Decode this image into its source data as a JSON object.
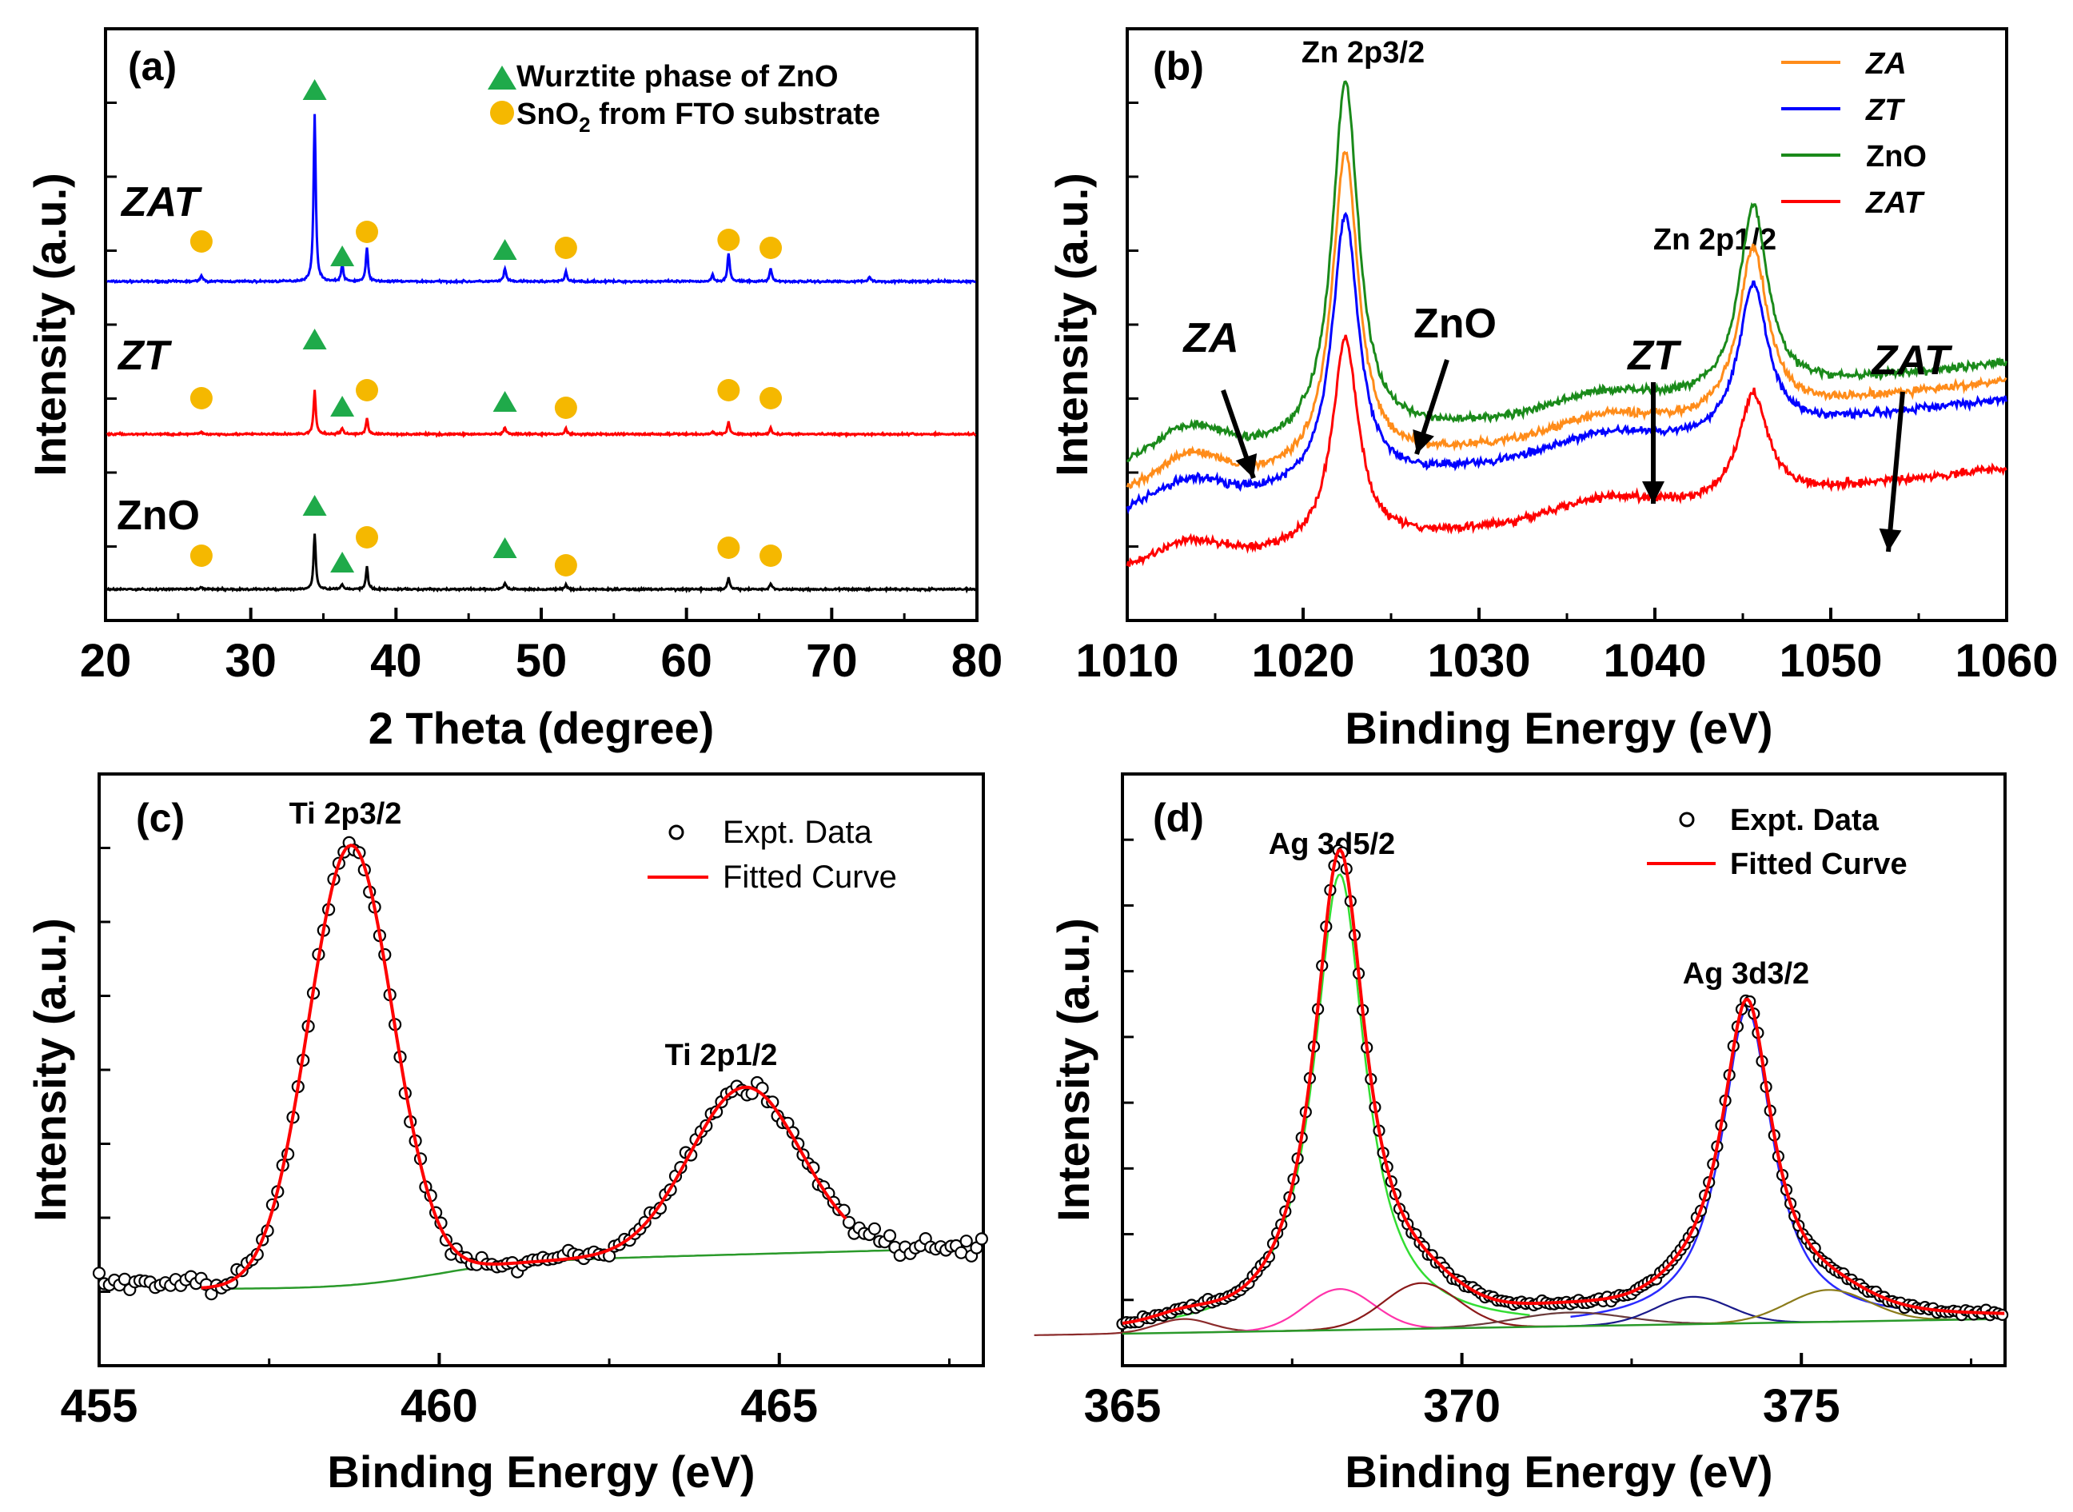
{
  "chart_data": [
    {
      "id": "a",
      "type": "line",
      "panel_label": "(a)",
      "xlabel": "2 Theta (degree)",
      "ylabel": "Intensity (a.u.)",
      "xlim": [
        20,
        80
      ],
      "xticks": [
        "20",
        "30",
        "40",
        "50",
        "60",
        "70",
        "80"
      ],
      "legend": {
        "placement": "top-right",
        "entries": [
          {
            "marker": "triangle",
            "color": "#1faa4a",
            "label": "Wurztite phase of ZnO"
          },
          {
            "marker": "circle",
            "color": "#f5b800",
            "label_main": "SnO",
            "label_sub": "2",
            "label_rest": " from FTO substrate"
          }
        ]
      },
      "series": [
        {
          "name": "ZAT",
          "color": "#0000ff",
          "offset": 2,
          "peaks": [
            [
              26.6,
              0.04
            ],
            [
              34.4,
              1.0
            ],
            [
              36.3,
              0.1
            ],
            [
              38.0,
              0.2
            ],
            [
              47.5,
              0.08
            ],
            [
              51.7,
              0.06
            ],
            [
              61.8,
              0.04
            ],
            [
              62.9,
              0.17
            ],
            [
              65.8,
              0.08
            ],
            [
              72.6,
              0.03
            ]
          ]
        },
        {
          "name": "ZT",
          "color": "#ff0000",
          "offset": 1,
          "peaks": [
            [
              26.6,
              0.03
            ],
            [
              34.4,
              0.55
            ],
            [
              36.3,
              0.08
            ],
            [
              38.0,
              0.2
            ],
            [
              47.5,
              0.08
            ],
            [
              51.7,
              0.07
            ],
            [
              61.8,
              0.03
            ],
            [
              62.9,
              0.15
            ],
            [
              65.8,
              0.08
            ]
          ]
        },
        {
          "name": "ZnO",
          "color": "#000000",
          "offset": 0,
          "peaks": [
            [
              26.6,
              0.02
            ],
            [
              34.4,
              0.5
            ],
            [
              36.3,
              0.05
            ],
            [
              38.0,
              0.2
            ],
            [
              47.5,
              0.06
            ],
            [
              51.7,
              0.04
            ],
            [
              62.9,
              0.1
            ],
            [
              65.8,
              0.05
            ]
          ]
        }
      ],
      "wurtzite_marks_2theta": [
        34.4,
        36.3,
        47.5
      ],
      "sno2_marks_2theta": [
        26.6,
        38.0,
        51.7,
        62.9,
        65.8
      ]
    },
    {
      "id": "b",
      "type": "line",
      "panel_label": "(b)",
      "xlabel": "Binding Energy (eV)",
      "ylabel": "Intensity (a.u.)",
      "xlim": [
        1010,
        1060
      ],
      "xticks": [
        "1010",
        "1020",
        "1030",
        "1040",
        "1050",
        "1060"
      ],
      "peak_labels": [
        "Zn 2p3/2",
        "Zn 2p1/2"
      ],
      "legend": {
        "placement": "top-right",
        "entries": [
          {
            "name": "ZA",
            "color": "#ff8c1a",
            "italic": true
          },
          {
            "name": "ZT",
            "color": "#0000ff",
            "italic": true
          },
          {
            "name": "ZnO",
            "color": "#1a8a1a",
            "italic": false
          },
          {
            "name": "ZAT",
            "color": "#ff0000",
            "italic": true
          }
        ]
      },
      "series": [
        {
          "name": "ZnO",
          "color": "#1a8a1a",
          "baseline": 0.47,
          "slope": 0.0009,
          "p1": 1.6,
          "p2": 0.83,
          "b1": 0.13
        },
        {
          "name": "ZA",
          "color": "#ff8c1a",
          "baseline": 0.34,
          "slope": 0.001,
          "p1": 1.4,
          "p2": 0.74,
          "b1": 0.13
        },
        {
          "name": "ZT",
          "color": "#0000ff",
          "baseline": 0.26,
          "slope": 0.001,
          "p1": 1.2,
          "p2": 0.66,
          "b1": 0.1
        },
        {
          "name": "ZAT",
          "color": "#ff0000",
          "baseline": 0.0,
          "slope": 0.0009,
          "p1": 0.92,
          "p2": 0.47,
          "b1": 0.09
        }
      ],
      "arrow_labels": [
        {
          "text": "ZA",
          "italic": true,
          "target_x": 1017.2
        },
        {
          "text": "ZnO",
          "italic": false,
          "target_x": 1026.3
        },
        {
          "text": "ZT",
          "italic": true,
          "target_x": 1040.3
        },
        {
          "text": "ZAT",
          "italic": true,
          "target_x": 1053.0
        }
      ]
    },
    {
      "id": "c",
      "type": "scatter",
      "panel_label": "(c)",
      "xlabel": "Binding Energy (eV)",
      "ylabel": "Intensity (a.u.)",
      "xlim": [
        455,
        468
      ],
      "xticks": [
        "455",
        "460",
        "465"
      ],
      "peak_labels": [
        "Ti 2p3/2",
        "Ti 2p1/2"
      ],
      "legend": {
        "placement": "top-right",
        "entries": [
          "Expt. Data",
          "Fitted Curve"
        ]
      },
      "peaks": [
        {
          "center": 458.7,
          "height": 1.0,
          "sigma": 0.62
        },
        {
          "center": 464.5,
          "height": 0.38,
          "sigma": 0.82
        }
      ],
      "fit_range": [
        456.5,
        466.0
      ]
    },
    {
      "id": "d",
      "type": "scatter",
      "panel_label": "(d)",
      "xlabel": "Binding Energy (eV)",
      "ylabel": "Intensity (a.u.)",
      "xlim": [
        365,
        378
      ],
      "xticks": [
        "365",
        "370",
        "375"
      ],
      "peak_labels": [
        "Ag 3d5/2",
        "Ag 3d3/2"
      ],
      "legend": {
        "placement": "top-right",
        "entries": [
          "Expt. Data",
          "Fitted Curve"
        ]
      },
      "peaks": [
        {
          "center": 368.2,
          "height": 1.0,
          "sigma": 0.38
        },
        {
          "center": 374.2,
          "height": 0.69,
          "sigma": 0.38
        }
      ],
      "minor_peaks": [
        {
          "center": 365.9,
          "height": 0.03,
          "sigma": 0.4,
          "color": "#8b2b2b"
        },
        {
          "center": 368.2,
          "height": 0.09,
          "sigma": 0.5,
          "color": "#ff33aa"
        },
        {
          "center": 369.4,
          "height": 0.1,
          "sigma": 0.55,
          "color": "#8b1a1a"
        },
        {
          "center": 371.6,
          "height": 0.03,
          "sigma": 0.8,
          "color": "#6b3b3b"
        },
        {
          "center": 373.4,
          "height": 0.06,
          "sigma": 0.55,
          "color": "#1a1a8b"
        },
        {
          "center": 375.4,
          "height": 0.07,
          "sigma": 0.6,
          "color": "#8b7b1a"
        }
      ]
    }
  ]
}
